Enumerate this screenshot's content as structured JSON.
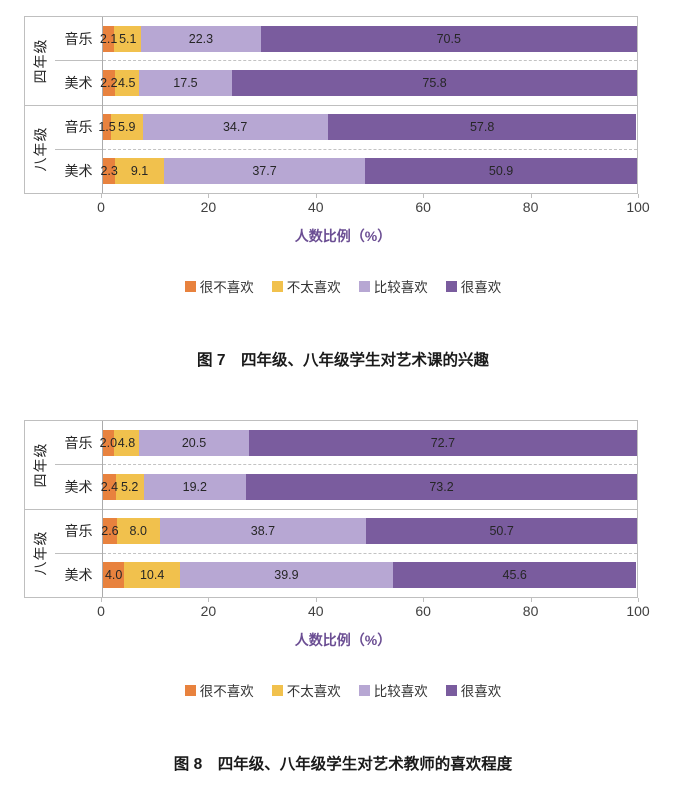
{
  "page": {
    "background": "#FFFFFF"
  },
  "legend": {
    "items": [
      {
        "label": "很不喜欢",
        "color": "#E8823E"
      },
      {
        "label": "不太喜欢",
        "color": "#F1C14D"
      },
      {
        "label": "比较喜欢",
        "color": "#B7A7D3"
      },
      {
        "label": "很喜欢",
        "color": "#7A5C9E"
      }
    ]
  },
  "chart_data": [
    {
      "type": "bar",
      "orientation": "horizontal",
      "stacked": true,
      "title": "图 7　四年级、八年级学生对艺术课的兴趣",
      "xlabel": "人数比例（%）",
      "xlim": [
        0,
        100
      ],
      "x_ticks": [
        0,
        20,
        40,
        60,
        80,
        100
      ],
      "grid": "row-separators",
      "legend_position": "bottom",
      "series_names": [
        "很不喜欢",
        "不太喜欢",
        "比较喜欢",
        "很喜欢"
      ],
      "categories": [
        {
          "group": "四年级",
          "label": "音乐",
          "values": [
            2.1,
            5.1,
            22.3,
            70.5
          ]
        },
        {
          "group": "四年级",
          "label": "美术",
          "values": [
            2.2,
            4.5,
            17.5,
            75.8
          ]
        },
        {
          "group": "八年级",
          "label": "音乐",
          "values": [
            1.5,
            5.9,
            34.7,
            57.8
          ]
        },
        {
          "group": "八年级",
          "label": "美术",
          "values": [
            2.3,
            9.1,
            37.7,
            50.9
          ]
        }
      ]
    },
    {
      "type": "bar",
      "orientation": "horizontal",
      "stacked": true,
      "title": "图 8　四年级、八年级学生对艺术教师的喜欢程度",
      "xlabel": "人数比例（%）",
      "xlim": [
        0,
        100
      ],
      "x_ticks": [
        0,
        20,
        40,
        60,
        80,
        100
      ],
      "grid": "row-separators",
      "legend_position": "bottom",
      "series_names": [
        "很不喜欢",
        "不太喜欢",
        "比较喜欢",
        "很喜欢"
      ],
      "categories": [
        {
          "group": "四年级",
          "label": "音乐",
          "values": [
            2.0,
            4.8,
            20.5,
            72.7
          ]
        },
        {
          "group": "四年级",
          "label": "美术",
          "values": [
            2.4,
            5.2,
            19.2,
            73.2
          ]
        },
        {
          "group": "八年级",
          "label": "音乐",
          "values": [
            2.6,
            8.0,
            38.7,
            50.7
          ]
        },
        {
          "group": "八年级",
          "label": "美术",
          "values": [
            4.0,
            10.4,
            39.9,
            45.6
          ]
        }
      ]
    }
  ]
}
